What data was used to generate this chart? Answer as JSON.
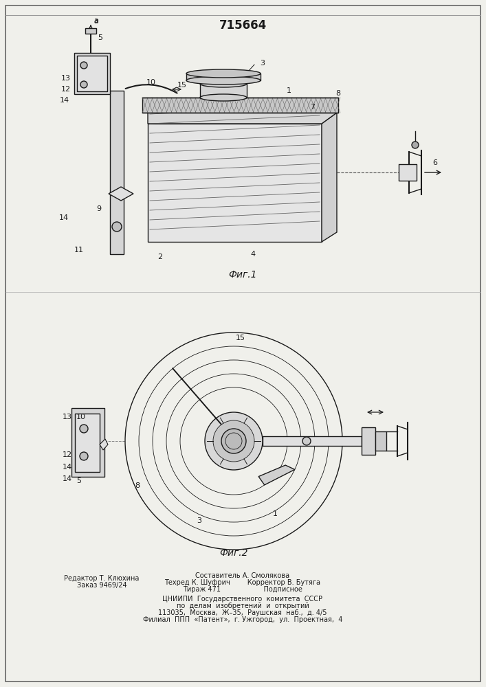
{
  "title": "715664",
  "fig1_label": "Фиг.1",
  "fig2_label": "Фиг.2",
  "background_color": "#f0f0eb",
  "line_color": "#1a1a1a",
  "footer_center": [
    "ЦНИИПИ  Государственного  комитета  СССР",
    "по  делам  изобретений  и  открытий",
    "113035,  Москва,  Ж–35,  Раушская  наб.,  д. 4/5",
    "Филиал  ППП  «Патент»,  г. Ужгород,  ул.  Проектная,  4"
  ]
}
